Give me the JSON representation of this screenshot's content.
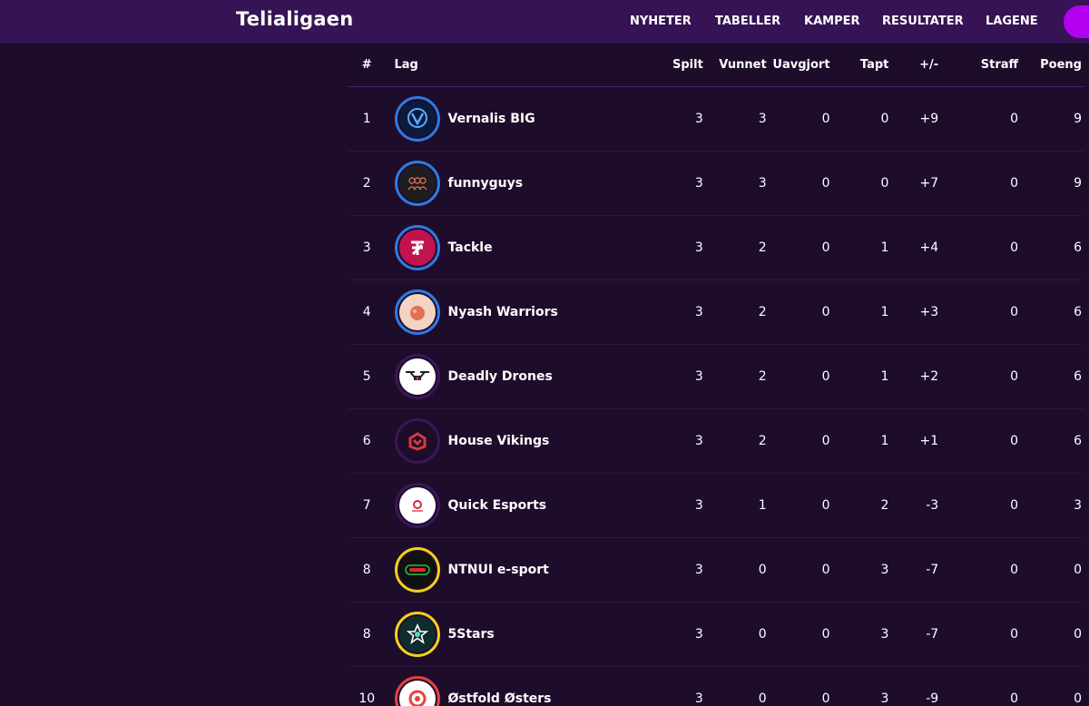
{
  "header": {
    "brand": "Telialigaen",
    "nav": [
      "NYHETER",
      "TABELLER",
      "KAMPER",
      "RESULTATER",
      "LAGENE"
    ]
  },
  "table": {
    "columns": [
      "#",
      "Lag",
      "Spilt",
      "Vunnet",
      "Uavgjort",
      "Tapt",
      "+/-",
      "Straff",
      "Poeng"
    ],
    "rows": [
      {
        "rank": "1",
        "team": "Vernalis BIG",
        "logo": "vernalis-logo",
        "played": "3",
        "won": "3",
        "draw": "0",
        "lost": "0",
        "diff": "+9",
        "penalty": "0",
        "points": "9"
      },
      {
        "rank": "2",
        "team": "funnyguys",
        "logo": "funnyguys-logo",
        "played": "3",
        "won": "3",
        "draw": "0",
        "lost": "0",
        "diff": "+7",
        "penalty": "0",
        "points": "9"
      },
      {
        "rank": "3",
        "team": "Tackle",
        "logo": "tackle-logo",
        "played": "3",
        "won": "2",
        "draw": "0",
        "lost": "1",
        "diff": "+4",
        "penalty": "0",
        "points": "6"
      },
      {
        "rank": "4",
        "team": "Nyash Warriors",
        "logo": "nyash-logo",
        "played": "3",
        "won": "2",
        "draw": "0",
        "lost": "1",
        "diff": "+3",
        "penalty": "0",
        "points": "6"
      },
      {
        "rank": "5",
        "team": "Deadly Drones",
        "logo": "drone-logo",
        "played": "3",
        "won": "2",
        "draw": "0",
        "lost": "1",
        "diff": "+2",
        "penalty": "0",
        "points": "6"
      },
      {
        "rank": "6",
        "team": "House Vikings",
        "logo": "house-vikings-logo",
        "played": "3",
        "won": "2",
        "draw": "0",
        "lost": "1",
        "diff": "+1",
        "penalty": "0",
        "points": "6"
      },
      {
        "rank": "7",
        "team": "Quick Esports",
        "logo": "quick-esports-logo",
        "played": "3",
        "won": "1",
        "draw": "0",
        "lost": "2",
        "diff": "-3",
        "penalty": "0",
        "points": "3"
      },
      {
        "rank": "8",
        "team": "NTNUI e-sport",
        "logo": "ntnui-logo",
        "played": "3",
        "won": "0",
        "draw": "0",
        "lost": "3",
        "diff": "-7",
        "penalty": "0",
        "points": "0"
      },
      {
        "rank": "8",
        "team": "5Stars",
        "logo": "5stars-logo",
        "played": "3",
        "won": "0",
        "draw": "0",
        "lost": "3",
        "diff": "-7",
        "penalty": "0",
        "points": "0"
      },
      {
        "rank": "10",
        "team": "Østfold Østers",
        "logo": "ostfold-osters-logo",
        "played": "3",
        "won": "0",
        "draw": "0",
        "lost": "3",
        "diff": "-9",
        "penalty": "0",
        "points": "0"
      }
    ]
  },
  "colors": {
    "page_bg": "#1e0c2b",
    "topbar_bg": "#351354",
    "accent": "#b400f0",
    "ring_blue": "#2d7ae3",
    "ring_purple": "#3a1657",
    "ring_yellow": "#f2d01c",
    "ring_red": "#e8413b"
  }
}
